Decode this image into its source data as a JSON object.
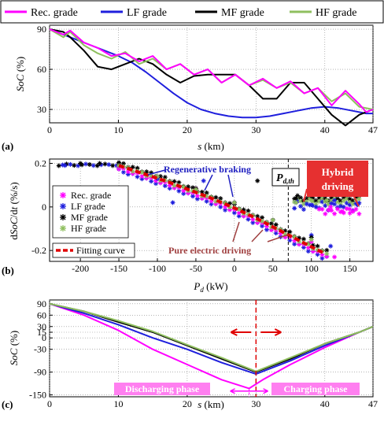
{
  "figure": {
    "background": "#ffffff",
    "colors": {
      "rec": "#ff00ff",
      "lf": "#1f1fdd",
      "mf": "#000000",
      "hf": "#8fbf5f",
      "fit": "#e00000",
      "annot_blue": "#2020c0",
      "annot_brown": "#a04040",
      "hybrid_bg": "#e63030",
      "phase_bg": "#ff7ff0",
      "phase_text": "#ffffff"
    }
  },
  "chart_data": [
    {
      "panel_tag": "(a)",
      "type": "line",
      "xlabel": "s (km)",
      "ylabel": "SoC (%)",
      "xlim": [
        0,
        47
      ],
      "ylim": [
        20,
        93
      ],
      "xticks": [
        0,
        10,
        20,
        30,
        40,
        47
      ],
      "yticks": [
        30,
        60,
        90
      ],
      "grid": true,
      "legend": {
        "placement": "top",
        "entries": [
          "Rec. grade",
          "LF grade",
          "MF grade",
          "HF grade"
        ]
      },
      "series": [
        {
          "name": "Rec. grade",
          "color_key": "rec",
          "x": [
            0,
            2,
            3,
            5,
            7,
            9,
            11,
            13,
            15,
            17,
            19,
            21,
            23,
            25,
            27,
            29,
            31,
            33,
            35,
            37,
            39,
            41,
            43,
            45,
            46,
            47
          ],
          "y": [
            90,
            86,
            89,
            80,
            76,
            70,
            72,
            66,
            70,
            60,
            64,
            56,
            60,
            50,
            56,
            48,
            53,
            46,
            51,
            42,
            46,
            33,
            44,
            34,
            28,
            30
          ]
        },
        {
          "name": "LF grade",
          "color_key": "lf",
          "x": [
            0,
            2,
            4,
            6,
            8,
            10,
            12,
            14,
            16,
            18,
            20,
            22,
            24,
            26,
            28,
            30,
            32,
            34,
            36,
            38,
            40,
            42,
            44,
            46,
            47
          ],
          "y": [
            90,
            86,
            82,
            78,
            74,
            70,
            65,
            58,
            50,
            42,
            35,
            30,
            27,
            25,
            24,
            24,
            25,
            27,
            29,
            31,
            32,
            31,
            29,
            27,
            27
          ]
        },
        {
          "name": "MF grade",
          "color_key": "mf",
          "x": [
            0,
            2,
            3,
            5,
            7,
            9,
            11,
            13,
            15,
            17,
            19,
            21,
            23,
            25,
            27,
            29,
            31,
            33,
            35,
            37,
            39,
            41,
            43,
            45,
            47
          ],
          "y": [
            90,
            88,
            84,
            74,
            62,
            60,
            64,
            68,
            64,
            56,
            50,
            55,
            56,
            56,
            56,
            48,
            38,
            38,
            50,
            50,
            38,
            26,
            18,
            26,
            30
          ]
        },
        {
          "name": "HF grade",
          "color_key": "hf",
          "x": [
            0,
            2,
            3,
            5,
            7,
            9,
            11,
            13,
            15,
            17,
            19,
            21,
            23,
            25,
            27,
            29,
            31,
            33,
            35,
            37,
            39,
            41,
            43,
            45,
            47
          ],
          "y": [
            90,
            84,
            88,
            78,
            72,
            68,
            73,
            64,
            68,
            60,
            64,
            56,
            60,
            50,
            56,
            48,
            52,
            46,
            50,
            42,
            46,
            36,
            42,
            32,
            30
          ]
        }
      ]
    },
    {
      "panel_tag": "(b)",
      "type": "scatter",
      "xlabel": "P_d (kW)",
      "ylabel": "dSoC/dt (%/s)",
      "xlim": [
        -240,
        180
      ],
      "ylim": [
        -0.25,
        0.22
      ],
      "xticks": [
        -200,
        -150,
        -100,
        -50,
        0,
        50,
        100,
        150
      ],
      "yticks": [
        0.2,
        0,
        -0.2
      ],
      "grid": true,
      "threshold_label": "Pd,th",
      "threshold_x": 70,
      "legend": {
        "placement": "left",
        "entries": [
          "Rec. grade",
          "LF grade",
          "MF grade",
          "HF grade",
          "Fitting curve"
        ]
      },
      "fitting_curve": {
        "name": "Fitting curve",
        "color_key": "fit",
        "x": [
          -150,
          -120,
          -90,
          -60,
          -30,
          0,
          30,
          60,
          90,
          115
        ],
        "y": [
          0.19,
          0.155,
          0.12,
          0.08,
          0.04,
          -0.005,
          -0.055,
          -0.11,
          -0.165,
          -0.21
        ]
      },
      "series": [
        {
          "name": "Rec. grade",
          "color_key": "rec",
          "x": [
            -150,
            -100,
            -50,
            0,
            50,
            100,
            130,
            110,
            125,
            140,
            150
          ],
          "y": [
            0.185,
            0.14,
            0.085,
            0.02,
            -0.06,
            -0.16,
            -0.23,
            -0.01,
            0.0,
            -0.02,
            -0.01
          ]
        },
        {
          "name": "LF grade",
          "color_key": "lf",
          "x": [
            -220,
            -150,
            -100,
            -50,
            0,
            50,
            100,
            125,
            -80,
            -40,
            80,
            100,
            130,
            160
          ],
          "y": [
            0.19,
            0.19,
            0.13,
            0.07,
            0.02,
            -0.06,
            -0.13,
            -0.18,
            0.02,
            0.12,
            0.02,
            0.01,
            0.03,
            0.01
          ]
        },
        {
          "name": "MF grade",
          "color_key": "mf",
          "x": [
            -200,
            -175,
            -150,
            -100,
            -50,
            0,
            50,
            100,
            30,
            80,
            100,
            120
          ],
          "y": [
            0.2,
            0.2,
            0.195,
            0.14,
            0.085,
            0.02,
            -0.06,
            -0.14,
            0.12,
            0.04,
            0.05,
            0.03
          ]
        },
        {
          "name": "HF grade",
          "color_key": "hf",
          "x": [
            -150,
            -100,
            -50,
            0,
            50,
            100,
            80,
            100,
            120
          ],
          "y": [
            0.19,
            0.14,
            0.08,
            0.02,
            -0.06,
            -0.15,
            0.02,
            0.03,
            0.03
          ]
        }
      ],
      "annotations": [
        {
          "text": "Regenerative braking",
          "color_key": "annot_blue"
        },
        {
          "text": "Pure electric driving",
          "color_key": "annot_brown"
        },
        {
          "text": "Hybrid driving",
          "color_key": "hybrid_bg"
        }
      ]
    },
    {
      "panel_tag": "(c)",
      "type": "line",
      "xlabel": "s (km)",
      "ylabel": "SoC (%)",
      "xlim": [
        0,
        47
      ],
      "ylim": [
        -155,
        100
      ],
      "xticks": [
        0,
        10,
        20,
        30,
        40,
        47
      ],
      "yticks": [
        90,
        60,
        30,
        15,
        0,
        -30,
        -90,
        -150
      ],
      "grid": true,
      "split_x": 30,
      "series": [
        {
          "name": "Rec. grade",
          "color_key": "rec",
          "x": [
            0,
            5,
            10,
            15,
            20,
            25,
            29,
            31,
            35,
            40,
            45,
            47
          ],
          "y": [
            90,
            60,
            20,
            -30,
            -70,
            -110,
            -133,
            -110,
            -70,
            -25,
            15,
            30
          ]
        },
        {
          "name": "LF grade",
          "color_key": "lf",
          "x": [
            0,
            5,
            10,
            15,
            20,
            25,
            30,
            35,
            40,
            45,
            47
          ],
          "y": [
            90,
            65,
            35,
            0,
            -30,
            -65,
            -95,
            -60,
            -20,
            15,
            30
          ]
        },
        {
          "name": "MF grade",
          "color_key": "mf",
          "x": [
            0,
            5,
            10,
            15,
            20,
            25,
            30,
            35,
            40,
            45,
            47
          ],
          "y": [
            90,
            70,
            42,
            15,
            -20,
            -55,
            -90,
            -55,
            -15,
            15,
            30
          ]
        },
        {
          "name": "HF grade",
          "color_key": "hf",
          "x": [
            0,
            5,
            10,
            15,
            20,
            25,
            30,
            35,
            40,
            45,
            47
          ],
          "y": [
            90,
            70,
            45,
            17,
            -18,
            -52,
            -88,
            -52,
            -15,
            15,
            30
          ]
        }
      ],
      "annotations": [
        {
          "text": "Discharging phase"
        },
        {
          "text": "Charging phase"
        }
      ]
    }
  ]
}
